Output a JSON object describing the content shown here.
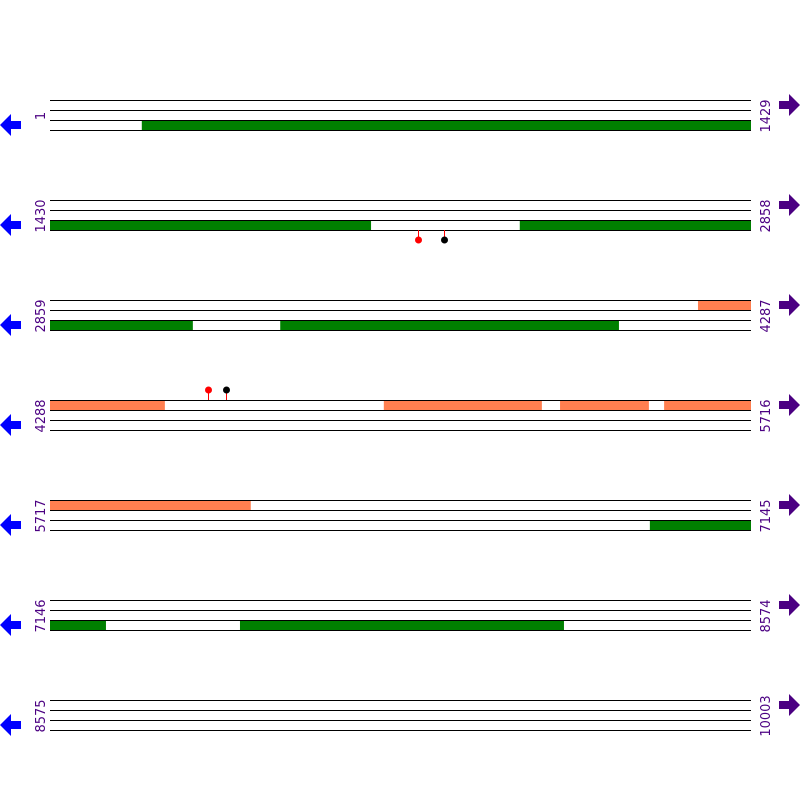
{
  "colors": {
    "cds": "#008000",
    "utr": "#ff7f50",
    "left_arrow": "#0000ff",
    "right_arrow": "#4b0082",
    "label": "#4b0082",
    "pin_red": "#ff0000",
    "pin_black": "#000000"
  },
  "icons": {
    "left": "arrow-left-icon",
    "right": "arrow-right-icon"
  },
  "rows": [
    {
      "start": "1",
      "end": "1429",
      "s": 1,
      "e": 1429,
      "features": [
        {
          "track": 2,
          "type": "cds",
          "from": 188,
          "to": 1429
        }
      ],
      "pins": []
    },
    {
      "start": "1430",
      "end": "2858",
      "s": 1430,
      "e": 2858,
      "features": [
        {
          "track": 2,
          "type": "cds",
          "from": 1430,
          "to": 2084
        },
        {
          "track": 2,
          "type": "cds",
          "from": 2387,
          "to": 2858
        }
      ],
      "pins": [
        {
          "pos": 2180,
          "color": "red",
          "side": "below"
        },
        {
          "pos": 2233,
          "color": "black",
          "side": "below"
        }
      ]
    },
    {
      "start": "2859",
      "end": "4287",
      "s": 2859,
      "e": 4287,
      "features": [
        {
          "track": 0,
          "type": "utr",
          "from": 4179,
          "to": 4287
        },
        {
          "track": 2,
          "type": "cds",
          "from": 2859,
          "to": 3150
        },
        {
          "track": 2,
          "type": "cds",
          "from": 3328,
          "to": 4018
        }
      ],
      "pins": []
    },
    {
      "start": "4288",
      "end": "5716",
      "s": 4288,
      "e": 5716,
      "features": [
        {
          "track": 0,
          "type": "utr",
          "from": 4288,
          "to": 4522
        },
        {
          "track": 0,
          "type": "utr",
          "from": 4968,
          "to": 5290
        },
        {
          "track": 0,
          "type": "utr",
          "from": 5327,
          "to": 5508
        },
        {
          "track": 0,
          "type": "utr",
          "from": 5539,
          "to": 5716
        }
      ],
      "pins": [
        {
          "pos": 4610,
          "color": "red",
          "side": "above"
        },
        {
          "pos": 4647,
          "color": "black",
          "side": "above"
        }
      ]
    },
    {
      "start": "5717",
      "end": "7145",
      "s": 5717,
      "e": 7145,
      "features": [
        {
          "track": 0,
          "type": "utr",
          "from": 5717,
          "to": 6126
        },
        {
          "track": 2,
          "type": "cds",
          "from": 6939,
          "to": 7145
        }
      ],
      "pins": []
    },
    {
      "start": "7146",
      "end": "8574",
      "s": 7146,
      "e": 8574,
      "features": [
        {
          "track": 2,
          "type": "cds",
          "from": 7146,
          "to": 7260
        },
        {
          "track": 2,
          "type": "cds",
          "from": 7533,
          "to": 8193
        }
      ],
      "pins": []
    },
    {
      "start": "8575",
      "end": "10003",
      "s": 8575,
      "e": 10003,
      "features": [],
      "pins": []
    }
  ]
}
